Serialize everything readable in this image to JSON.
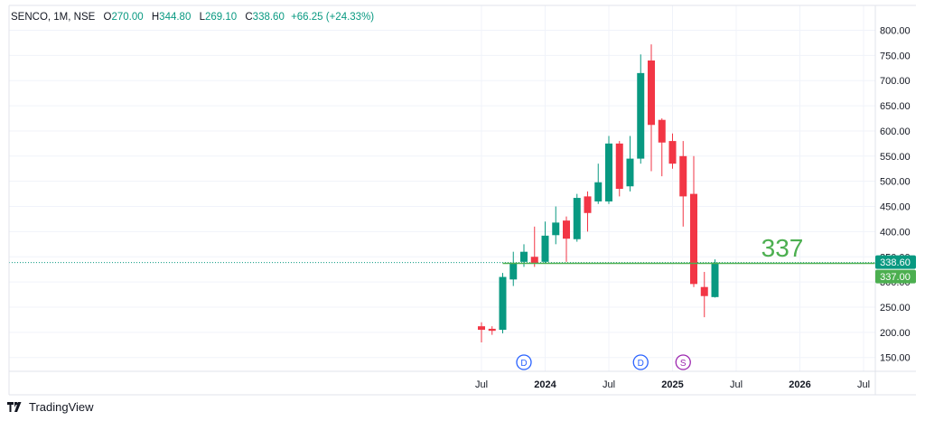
{
  "legend": {
    "symbol": "SENCO, 1M, NSE",
    "open_label": "O",
    "open": "270.00",
    "high_label": "H",
    "high": "344.80",
    "low_label": "L",
    "low": "269.10",
    "close_label": "C",
    "close": "338.60",
    "change": "+66.25 (+24.33%)"
  },
  "footer": {
    "brand": "TradingView"
  },
  "annotation_text": "337",
  "price_labels": {
    "last": "338.60",
    "line": "337.00"
  },
  "colors": {
    "up": "#089981",
    "down": "#F23645",
    "hline": "#4CAF50",
    "grid": "#f0f3fa",
    "divi": "#2962FF",
    "split": "#9C27B0"
  },
  "chart_data": {
    "type": "candlestick",
    "title": "SENCO, 1M, NSE",
    "y_ticks": [
      150,
      200,
      250,
      300,
      350,
      400,
      450,
      500,
      550,
      600,
      650,
      700,
      750,
      800
    ],
    "ylim": [
      125,
      815
    ],
    "x_labels": [
      {
        "label": "Jul",
        "month": "2023-07"
      },
      {
        "label": "2024",
        "month": "2024-01"
      },
      {
        "label": "Jul",
        "month": "2024-07"
      },
      {
        "label": "2025",
        "month": "2025-01"
      },
      {
        "label": "Jul",
        "month": "2025-07"
      },
      {
        "label": "2026",
        "month": "2026-01"
      },
      {
        "label": "Jul",
        "month": "2026-07"
      }
    ],
    "x_range": [
      "2023-07",
      "2026-08"
    ],
    "candles": [
      {
        "month": "2023-07",
        "open": 212,
        "high": 220,
        "low": 180,
        "close": 205
      },
      {
        "month": "2023-08",
        "open": 207,
        "high": 212,
        "low": 195,
        "close": 203
      },
      {
        "month": "2023-09",
        "open": 205,
        "high": 318,
        "low": 198,
        "close": 310
      },
      {
        "month": "2023-10",
        "open": 305,
        "high": 360,
        "low": 292,
        "close": 338
      },
      {
        "month": "2023-11",
        "open": 340,
        "high": 375,
        "low": 330,
        "close": 360
      },
      {
        "month": "2023-12",
        "open": 350,
        "high": 410,
        "low": 330,
        "close": 338
      },
      {
        "month": "2024-01",
        "open": 340,
        "high": 420,
        "low": 336,
        "close": 392
      },
      {
        "month": "2024-02",
        "open": 393,
        "high": 450,
        "low": 375,
        "close": 418
      },
      {
        "month": "2024-03",
        "open": 422,
        "high": 430,
        "low": 340,
        "close": 386
      },
      {
        "month": "2024-04",
        "open": 385,
        "high": 475,
        "low": 380,
        "close": 467
      },
      {
        "month": "2024-05",
        "open": 470,
        "high": 480,
        "low": 400,
        "close": 437
      },
      {
        "month": "2024-06",
        "open": 460,
        "high": 535,
        "low": 455,
        "close": 498
      },
      {
        "month": "2024-07",
        "open": 460,
        "high": 590,
        "low": 455,
        "close": 575
      },
      {
        "month": "2024-08",
        "open": 575,
        "high": 580,
        "low": 470,
        "close": 485
      },
      {
        "month": "2024-09",
        "open": 490,
        "high": 590,
        "low": 480,
        "close": 545
      },
      {
        "month": "2024-10",
        "open": 545,
        "high": 752,
        "low": 535,
        "close": 715
      },
      {
        "month": "2024-11",
        "open": 740,
        "high": 772,
        "low": 520,
        "close": 612
      },
      {
        "month": "2024-12",
        "open": 622,
        "high": 625,
        "low": 510,
        "close": 577
      },
      {
        "month": "2025-01",
        "open": 580,
        "high": 595,
        "low": 525,
        "close": 535
      },
      {
        "month": "2025-02",
        "open": 550,
        "high": 580,
        "low": 410,
        "close": 470
      },
      {
        "month": "2025-03",
        "open": 475,
        "high": 550,
        "low": 290,
        "close": 296
      },
      {
        "month": "2025-04",
        "open": 290,
        "high": 320,
        "low": 230,
        "close": 272
      },
      {
        "month": "2025-05",
        "open": 270.0,
        "high": 344.8,
        "low": 269.1,
        "close": 338.6
      }
    ],
    "events": [
      {
        "month": "2023-11",
        "type": "D"
      },
      {
        "month": "2024-10",
        "type": "D"
      },
      {
        "month": "2025-02",
        "type": "S"
      }
    ],
    "horizontal_line": {
      "value": 337.0,
      "start_month": "2023-09",
      "label": "337"
    },
    "last_price": 338.6,
    "grid": true
  }
}
